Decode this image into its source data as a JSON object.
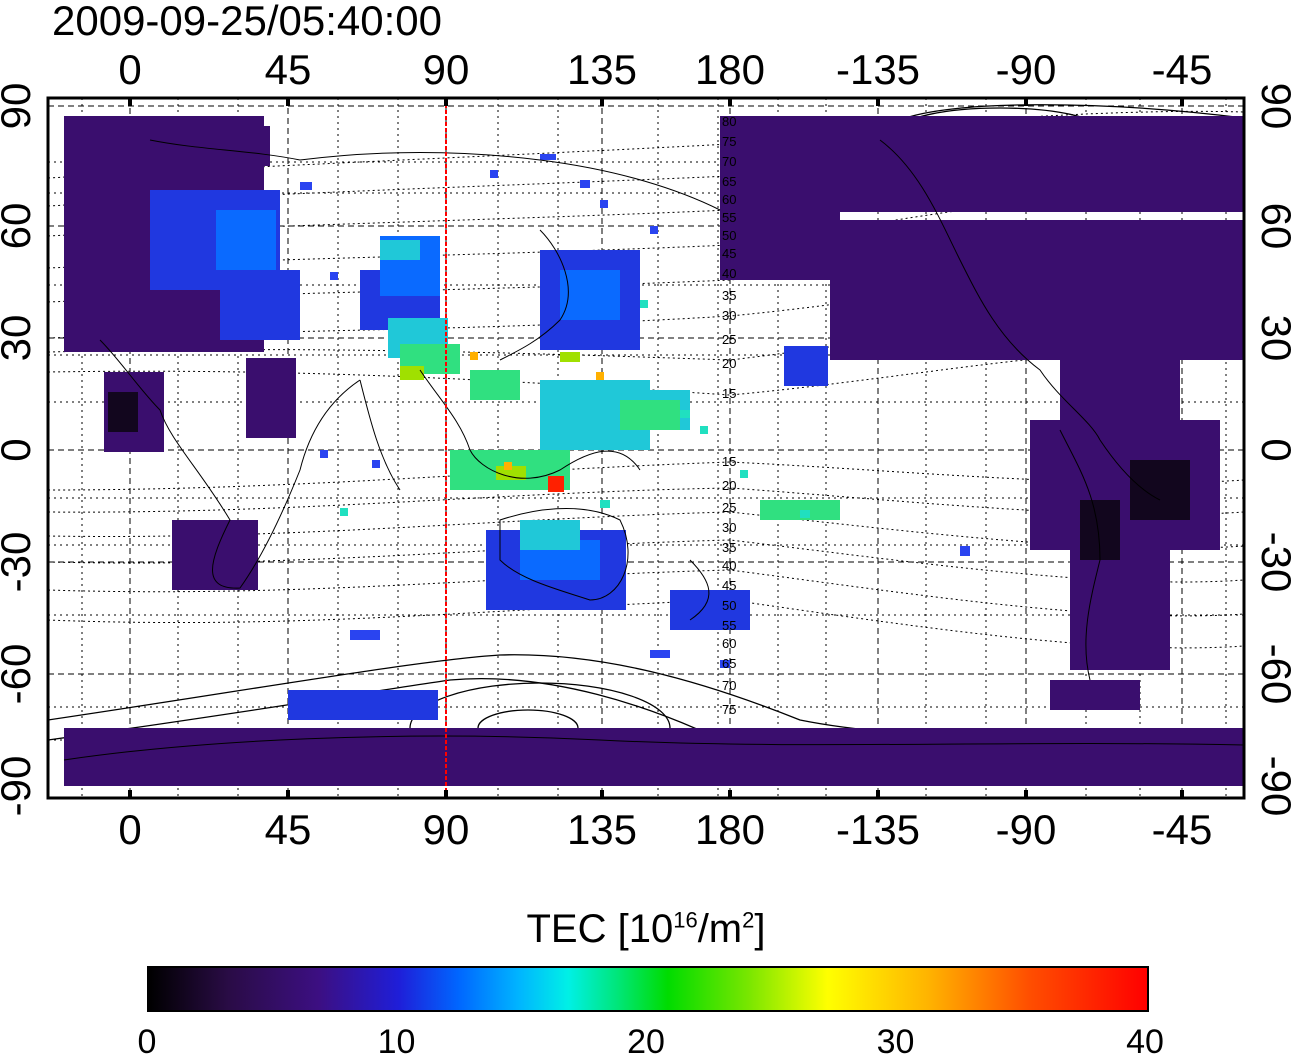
{
  "title": "2009-09-25/05:40:00",
  "map": {
    "lon_ticks_top": [
      "0",
      "45",
      "90",
      "135",
      "180",
      "-135",
      "-90",
      "-45"
    ],
    "lon_ticks_bottom": [
      "0",
      "45",
      "90",
      "135",
      "180",
      "-135",
      "-90",
      "-45"
    ],
    "lat_ticks_left": [
      "90",
      "60",
      "30",
      "0",
      "-30",
      "-60",
      "-90"
    ],
    "lat_ticks_right": [
      "90",
      "60",
      "30",
      "0",
      "-30",
      "-60",
      "-90"
    ],
    "contour_labels_north": [
      "80",
      "75",
      "70",
      "65",
      "60",
      "55",
      "50",
      "45",
      "40",
      "35",
      "30",
      "25",
      "20",
      "15"
    ],
    "contour_labels_south": [
      "15",
      "20",
      "25",
      "30",
      "35",
      "40",
      "45",
      "50",
      "55",
      "60",
      "65",
      "70",
      "75"
    ],
    "red_line_color": "#ff0000"
  },
  "colorbar": {
    "title_prefix": "TEC  [10",
    "title_exp1": "16",
    "title_mid": "/m",
    "title_exp2": "2",
    "title_suffix": "]",
    "min": 0,
    "max": 40,
    "ticks": [
      "0",
      "10",
      "20",
      "30",
      "40"
    ]
  }
}
